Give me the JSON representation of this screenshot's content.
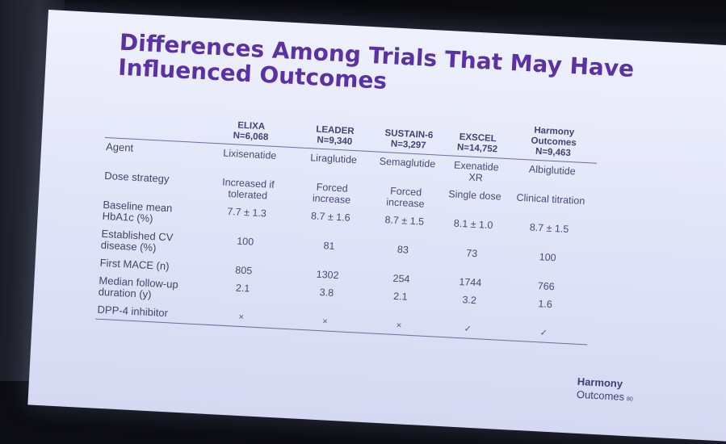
{
  "slide": {
    "title": [
      "Differences Among Trials That May Have",
      "Influenced Outcomes"
    ],
    "columns": [
      {
        "name": "ELIXA",
        "n": "N=6,068"
      },
      {
        "name": "LEADER",
        "n": "N=9,340"
      },
      {
        "name": "SUSTAIN-6",
        "n": "N=3,297"
      },
      {
        "name": "EXSCEL",
        "n": "N=14,752"
      },
      {
        "name": "Harmony Outcomes",
        "n": "N=9,463"
      }
    ],
    "header_row_label": "Agent",
    "rows": [
      {
        "label": "Agent",
        "cells": [
          "Lixisenatide",
          "Liraglutide",
          "Semaglutide",
          "Exenatide XR",
          "Albiglutide"
        ]
      },
      {
        "label": "Dose strategy",
        "cells": [
          "Increased if tolerated",
          "Forced increase",
          "Forced increase",
          "Single dose",
          "Clinical titration"
        ]
      },
      {
        "label": "Baseline mean HbA1c (%)",
        "cells": [
          "7.7 ± 1.3",
          "8.7 ± 1.6",
          "8.7 ± 1.5",
          "8.1 ± 1.0",
          "8.7 ± 1.5"
        ]
      },
      {
        "label": "Established CV disease (%)",
        "cells": [
          "100",
          "81",
          "83",
          "73",
          "100"
        ]
      },
      {
        "label": "First MACE (n)",
        "cells": [
          "805",
          "1302",
          "254",
          "1744",
          "766"
        ]
      },
      {
        "label": "Median follow-up duration (y)",
        "cells": [
          "2.1",
          "3.8",
          "2.1",
          "3.2",
          "1.6"
        ]
      },
      {
        "label": "DPP-4 inhibitor",
        "cells": [
          "×",
          "×",
          "×",
          "✓",
          "✓"
        ]
      }
    ],
    "footer": {
      "logo_line1": "Harmony",
      "logo_line2": "Outcomes",
      "page": "80"
    }
  }
}
